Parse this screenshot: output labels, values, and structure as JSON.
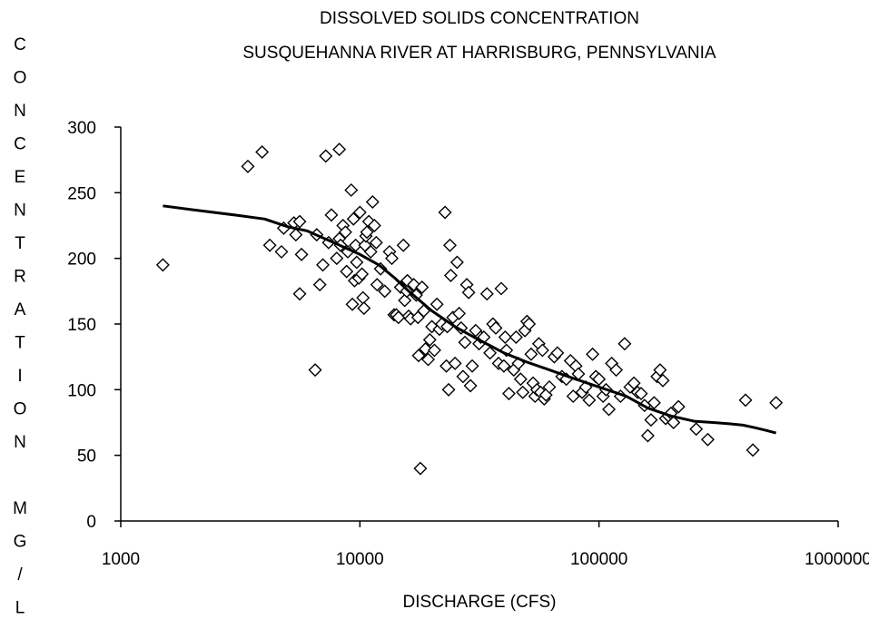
{
  "chart_data": {
    "type": "scatter",
    "title": [
      "DISSOLVED SOLIDS CONCENTRATION",
      "SUSQUEHANNA RIVER AT HARRISBURG, PENNSYLVANIA"
    ],
    "xlabel": "DISCHARGE (CFS)",
    "ylabel": "CONCENTRATION MG/L",
    "xscale": "log",
    "xlim": [
      1000,
      1000000
    ],
    "ylim": [
      0,
      300
    ],
    "x_ticks": [
      "1000",
      "10000",
      "100000",
      "1000000"
    ],
    "y_ticks": [
      "0",
      "50",
      "100",
      "150",
      "200",
      "250",
      "300"
    ],
    "grid": false,
    "legend": "none",
    "marker": "diamond-open",
    "series": [
      {
        "points": [
          [
            1500,
            195
          ],
          [
            3400,
            270
          ],
          [
            3900,
            281
          ],
          [
            4200,
            210
          ],
          [
            4700,
            205
          ],
          [
            4800,
            223
          ],
          [
            5300,
            227
          ],
          [
            5400,
            218
          ],
          [
            5600,
            173
          ],
          [
            5600,
            228
          ],
          [
            5700,
            203
          ],
          [
            6500,
            115
          ],
          [
            6600,
            218
          ],
          [
            6800,
            180
          ],
          [
            7000,
            195
          ],
          [
            7200,
            278
          ],
          [
            7400,
            212
          ],
          [
            7600,
            233
          ],
          [
            8000,
            200
          ],
          [
            8200,
            283
          ],
          [
            8200,
            215
          ],
          [
            8300,
            210
          ],
          [
            8500,
            225
          ],
          [
            8700,
            220
          ],
          [
            8800,
            190
          ],
          [
            8900,
            205
          ],
          [
            9200,
            252
          ],
          [
            9300,
            165
          ],
          [
            9400,
            230
          ],
          [
            9500,
            183
          ],
          [
            9600,
            210
          ],
          [
            9700,
            197
          ],
          [
            9900,
            185
          ],
          [
            10000,
            235
          ],
          [
            10200,
            188
          ],
          [
            10300,
            170
          ],
          [
            10400,
            162
          ],
          [
            10500,
            210
          ],
          [
            10600,
            217
          ],
          [
            10700,
            220
          ],
          [
            10900,
            228
          ],
          [
            11100,
            205
          ],
          [
            11300,
            243
          ],
          [
            11500,
            225
          ],
          [
            11700,
            212
          ],
          [
            11800,
            180
          ],
          [
            12200,
            192
          ],
          [
            12700,
            175
          ],
          [
            13300,
            205
          ],
          [
            13600,
            200
          ],
          [
            13900,
            157
          ],
          [
            14200,
            157
          ],
          [
            14500,
            155
          ],
          [
            14800,
            178
          ],
          [
            15200,
            210
          ],
          [
            15400,
            168
          ],
          [
            15700,
            175
          ],
          [
            15800,
            183
          ],
          [
            16000,
            156
          ],
          [
            16300,
            154
          ],
          [
            16800,
            180
          ],
          [
            17200,
            172
          ],
          [
            17500,
            155
          ],
          [
            17600,
            126
          ],
          [
            17900,
            40
          ],
          [
            18200,
            178
          ],
          [
            18500,
            160
          ],
          [
            18800,
            131
          ],
          [
            19300,
            123
          ],
          [
            19600,
            138
          ],
          [
            20000,
            148
          ],
          [
            20500,
            130
          ],
          [
            21000,
            165
          ],
          [
            21500,
            146
          ],
          [
            22000,
            150
          ],
          [
            22700,
            235
          ],
          [
            23000,
            118
          ],
          [
            23200,
            148
          ],
          [
            23500,
            100
          ],
          [
            23800,
            210
          ],
          [
            24000,
            187
          ],
          [
            24500,
            155
          ],
          [
            25000,
            120
          ],
          [
            25500,
            197
          ],
          [
            26000,
            158
          ],
          [
            26500,
            147
          ],
          [
            27000,
            110
          ],
          [
            27500,
            136
          ],
          [
            28000,
            180
          ],
          [
            28500,
            174
          ],
          [
            29000,
            103
          ],
          [
            29500,
            118
          ],
          [
            30500,
            145
          ],
          [
            31500,
            135
          ],
          [
            32000,
            140
          ],
          [
            33000,
            140
          ],
          [
            34000,
            173
          ],
          [
            35000,
            128
          ],
          [
            36000,
            150
          ],
          [
            37000,
            147
          ],
          [
            38000,
            120
          ],
          [
            39000,
            177
          ],
          [
            40000,
            118
          ],
          [
            40500,
            140
          ],
          [
            41000,
            130
          ],
          [
            42000,
            97
          ],
          [
            44000,
            115
          ],
          [
            45000,
            140
          ],
          [
            46000,
            120
          ],
          [
            47000,
            108
          ],
          [
            48000,
            98
          ],
          [
            49000,
            145
          ],
          [
            50000,
            152
          ],
          [
            51000,
            150
          ],
          [
            52000,
            127
          ],
          [
            53000,
            105
          ],
          [
            54000,
            95
          ],
          [
            55000,
            100
          ],
          [
            56000,
            135
          ],
          [
            57000,
            98
          ],
          [
            58000,
            130
          ],
          [
            59000,
            93
          ],
          [
            60000,
            96
          ],
          [
            62000,
            102
          ],
          [
            65000,
            125
          ],
          [
            67000,
            128
          ],
          [
            70000,
            110
          ],
          [
            73000,
            108
          ],
          [
            76000,
            122
          ],
          [
            78000,
            95
          ],
          [
            80000,
            118
          ],
          [
            82000,
            112
          ],
          [
            85000,
            98
          ],
          [
            88000,
            102
          ],
          [
            91000,
            92
          ],
          [
            94000,
            127
          ],
          [
            97000,
            110
          ],
          [
            100000,
            108
          ],
          [
            104000,
            95
          ],
          [
            107000,
            100
          ],
          [
            110000,
            85
          ],
          [
            113000,
            120
          ],
          [
            118000,
            115
          ],
          [
            123000,
            95
          ],
          [
            128000,
            135
          ],
          [
            135000,
            102
          ],
          [
            140000,
            105
          ],
          [
            145000,
            98
          ],
          [
            150000,
            97
          ],
          [
            155000,
            88
          ],
          [
            160000,
            65
          ],
          [
            165000,
            77
          ],
          [
            170000,
            90
          ],
          [
            175000,
            110
          ],
          [
            180000,
            115
          ],
          [
            185000,
            107
          ],
          [
            190000,
            78
          ],
          [
            195000,
            80
          ],
          [
            200000,
            82
          ],
          [
            205000,
            75
          ],
          [
            215000,
            87
          ],
          [
            255000,
            70
          ],
          [
            285000,
            62
          ],
          [
            410000,
            92
          ],
          [
            440000,
            54
          ],
          [
            550000,
            90
          ]
        ]
      },
      {
        "line": true,
        "points": [
          [
            1500,
            240
          ],
          [
            2000,
            237
          ],
          [
            3000,
            233
          ],
          [
            4000,
            230
          ],
          [
            5000,
            224
          ],
          [
            6000,
            221
          ],
          [
            8000,
            211
          ],
          [
            10000,
            203
          ],
          [
            12000,
            195
          ],
          [
            14000,
            185
          ],
          [
            16000,
            175
          ],
          [
            20000,
            160
          ],
          [
            25000,
            148
          ],
          [
            30000,
            140
          ],
          [
            40000,
            128
          ],
          [
            50000,
            121
          ],
          [
            60000,
            116
          ],
          [
            80000,
            108
          ],
          [
            100000,
            102
          ],
          [
            130000,
            95
          ],
          [
            160000,
            86
          ],
          [
            200000,
            80
          ],
          [
            250000,
            76
          ],
          [
            300000,
            75
          ],
          [
            350000,
            74
          ],
          [
            400000,
            73
          ],
          [
            450000,
            71
          ],
          [
            500000,
            69
          ],
          [
            550000,
            67
          ]
        ]
      }
    ]
  }
}
